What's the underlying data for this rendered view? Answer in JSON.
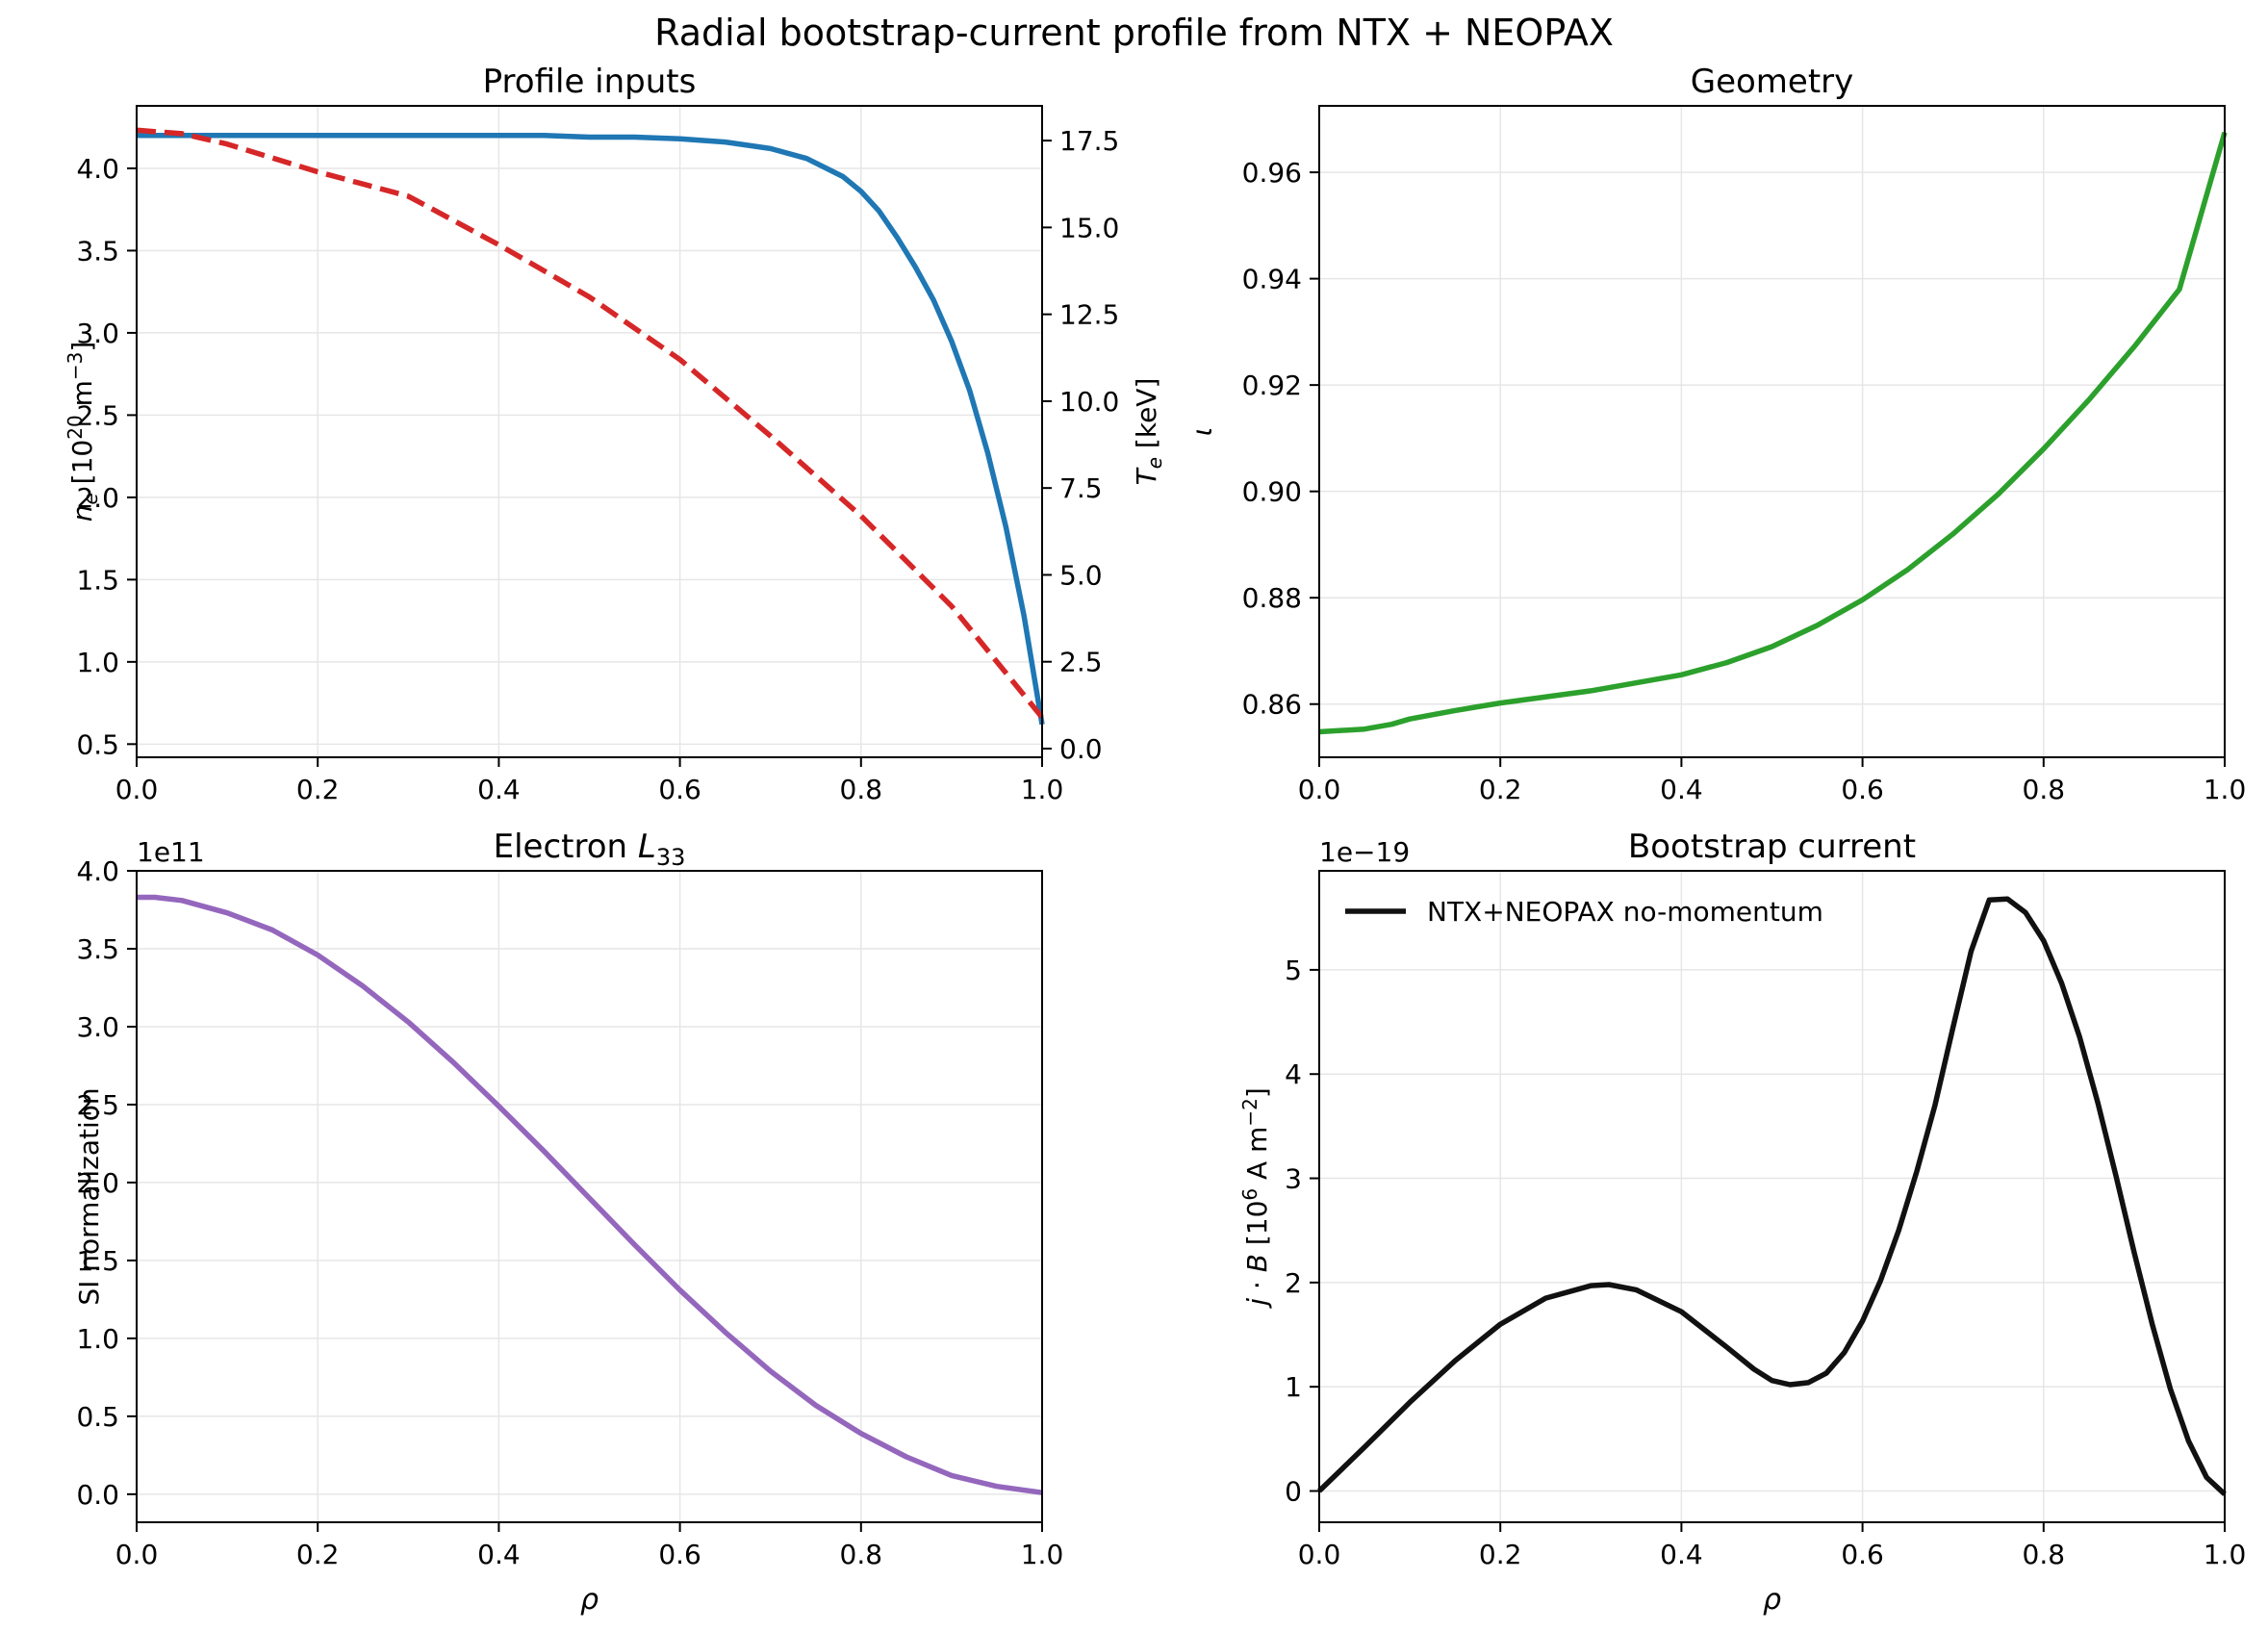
{
  "figure": {
    "title": "Radial bootstrap-current profile from NTX + NEOPAX"
  },
  "chart_data": [
    {
      "id": "profile",
      "type": "line",
      "title": "Profile inputs",
      "xlabel": "",
      "ylabel": "n_e [10^20 m^-3]",
      "y2label": "T_e [keV]",
      "xlim": [
        0,
        1
      ],
      "ylim": [
        0.42,
        4.38
      ],
      "y2lim": [
        -0.25,
        18.5
      ],
      "xticks": [
        0,
        0.2,
        0.4,
        0.6,
        0.8,
        1.0
      ],
      "xtick_labels": [
        "0.0",
        "0.2",
        "0.4",
        "0.6",
        "0.8",
        "1.0"
      ],
      "yticks": [
        0.5,
        1.0,
        1.5,
        2.0,
        2.5,
        3.0,
        3.5,
        4.0
      ],
      "ytick_labels": [
        "0.5",
        "1.0",
        "1.5",
        "2.0",
        "2.5",
        "3.0",
        "3.5",
        "4.0"
      ],
      "y2ticks": [
        0,
        2.5,
        5,
        7.5,
        10,
        12.5,
        15,
        17.5
      ],
      "y2tick_labels": [
        "0.0",
        "2.5",
        "5.0",
        "7.5",
        "10.0",
        "12.5",
        "15.0",
        "17.5"
      ],
      "grid": true,
      "series": [
        {
          "axis": "left",
          "color": "#1f77b4",
          "style": "solid",
          "x": [
            0,
            0.1,
            0.2,
            0.3,
            0.4,
            0.45,
            0.5,
            0.55,
            0.6,
            0.65,
            0.7,
            0.74,
            0.78,
            0.8,
            0.82,
            0.84,
            0.86,
            0.88,
            0.9,
            0.92,
            0.94,
            0.96,
            0.98,
            1.0
          ],
          "y": [
            4.2,
            4.2,
            4.2,
            4.2,
            4.2,
            4.2,
            4.19,
            4.19,
            4.18,
            4.16,
            4.12,
            4.06,
            3.95,
            3.86,
            3.74,
            3.58,
            3.4,
            3.2,
            2.95,
            2.65,
            2.27,
            1.82,
            1.28,
            0.62
          ]
        },
        {
          "axis": "right",
          "color": "#d62728",
          "style": "dashed",
          "x": [
            0,
            0.05,
            0.1,
            0.2,
            0.3,
            0.4,
            0.5,
            0.6,
            0.7,
            0.8,
            0.9,
            1.0
          ],
          "y": [
            17.8,
            17.7,
            17.4,
            16.6,
            15.9,
            14.5,
            13.0,
            11.2,
            9.0,
            6.7,
            4.1,
            0.9
          ]
        }
      ]
    },
    {
      "id": "geometry",
      "type": "line",
      "title": "Geometry",
      "xlabel": "",
      "ylabel": "ι",
      "xlim": [
        0,
        1
      ],
      "ylim": [
        0.85,
        0.9725
      ],
      "xticks": [
        0,
        0.2,
        0.4,
        0.6,
        0.8,
        1.0
      ],
      "xtick_labels": [
        "0.0",
        "0.2",
        "0.4",
        "0.6",
        "0.8",
        "1.0"
      ],
      "yticks": [
        0.86,
        0.88,
        0.9,
        0.92,
        0.94,
        0.96
      ],
      "ytick_labels": [
        "0.86",
        "0.88",
        "0.90",
        "0.92",
        "0.94",
        "0.96"
      ],
      "grid": true,
      "series": [
        {
          "color": "#2ca02c",
          "style": "solid",
          "x": [
            0,
            0.05,
            0.08,
            0.1,
            0.15,
            0.2,
            0.3,
            0.4,
            0.45,
            0.5,
            0.55,
            0.6,
            0.65,
            0.7,
            0.75,
            0.8,
            0.85,
            0.9,
            0.95,
            1.0
          ],
          "y": [
            0.8548,
            0.8553,
            0.8562,
            0.8572,
            0.8588,
            0.8602,
            0.8625,
            0.8655,
            0.8678,
            0.8708,
            0.8748,
            0.8796,
            0.8853,
            0.892,
            0.8995,
            0.908,
            0.9172,
            0.9272,
            0.938,
            0.9675
          ]
        }
      ]
    },
    {
      "id": "l33",
      "type": "line",
      "title": "Electron L_33",
      "xlabel": "ρ",
      "ylabel": "SI normalization",
      "offset_label": "1e11",
      "xlim": [
        0,
        1
      ],
      "ylim": [
        -0.18,
        4.0
      ],
      "xticks": [
        0,
        0.2,
        0.4,
        0.6,
        0.8,
        1.0
      ],
      "xtick_labels": [
        "0.0",
        "0.2",
        "0.4",
        "0.6",
        "0.8",
        "1.0"
      ],
      "yticks": [
        0,
        0.5,
        1.0,
        1.5,
        2.0,
        2.5,
        3.0,
        3.5,
        4.0
      ],
      "ytick_labels": [
        "0.0",
        "0.5",
        "1.0",
        "1.5",
        "2.0",
        "2.5",
        "3.0",
        "3.5",
        "4.0"
      ],
      "grid": true,
      "series": [
        {
          "color": "#9467bd",
          "style": "solid",
          "x": [
            0,
            0.02,
            0.05,
            0.1,
            0.15,
            0.2,
            0.25,
            0.3,
            0.35,
            0.4,
            0.45,
            0.5,
            0.55,
            0.6,
            0.65,
            0.7,
            0.75,
            0.8,
            0.85,
            0.9,
            0.95,
            1.0
          ],
          "y": [
            3.83,
            3.83,
            3.81,
            3.73,
            3.62,
            3.46,
            3.26,
            3.03,
            2.77,
            2.49,
            2.2,
            1.9,
            1.6,
            1.31,
            1.04,
            0.79,
            0.57,
            0.39,
            0.24,
            0.12,
            0.05,
            0.01
          ]
        }
      ]
    },
    {
      "id": "bootstrap",
      "type": "line",
      "title": "Bootstrap current",
      "xlabel": "ρ",
      "ylabel": "j · B [10^6 A m^-2]",
      "offset_label": "1e−19",
      "xlim": [
        0,
        1
      ],
      "ylim": [
        -0.3,
        5.95
      ],
      "xticks": [
        0,
        0.2,
        0.4,
        0.6,
        0.8,
        1.0
      ],
      "xtick_labels": [
        "0.0",
        "0.2",
        "0.4",
        "0.6",
        "0.8",
        "1.0"
      ],
      "yticks": [
        0,
        1,
        2,
        3,
        4,
        5
      ],
      "ytick_labels": [
        "0",
        "1",
        "2",
        "3",
        "4",
        "5"
      ],
      "grid": true,
      "legend": "upper-left",
      "series": [
        {
          "name": "NTX+NEOPAX no-momentum",
          "color": "#111111",
          "style": "solid",
          "x": [
            0,
            0.05,
            0.1,
            0.15,
            0.2,
            0.25,
            0.3,
            0.32,
            0.35,
            0.4,
            0.45,
            0.48,
            0.5,
            0.52,
            0.54,
            0.56,
            0.58,
            0.6,
            0.62,
            0.64,
            0.66,
            0.68,
            0.7,
            0.72,
            0.74,
            0.76,
            0.78,
            0.8,
            0.82,
            0.84,
            0.86,
            0.88,
            0.9,
            0.92,
            0.94,
            0.96,
            0.98,
            1.0
          ],
          "y": [
            0,
            0.42,
            0.85,
            1.25,
            1.6,
            1.85,
            1.97,
            1.98,
            1.93,
            1.72,
            1.38,
            1.17,
            1.06,
            1.02,
            1.04,
            1.13,
            1.33,
            1.63,
            2.02,
            2.5,
            3.07,
            3.7,
            4.45,
            5.18,
            5.67,
            5.68,
            5.55,
            5.28,
            4.87,
            4.35,
            3.72,
            3.02,
            2.29,
            1.6,
            0.98,
            0.48,
            0.13,
            -0.03
          ]
        }
      ]
    }
  ]
}
